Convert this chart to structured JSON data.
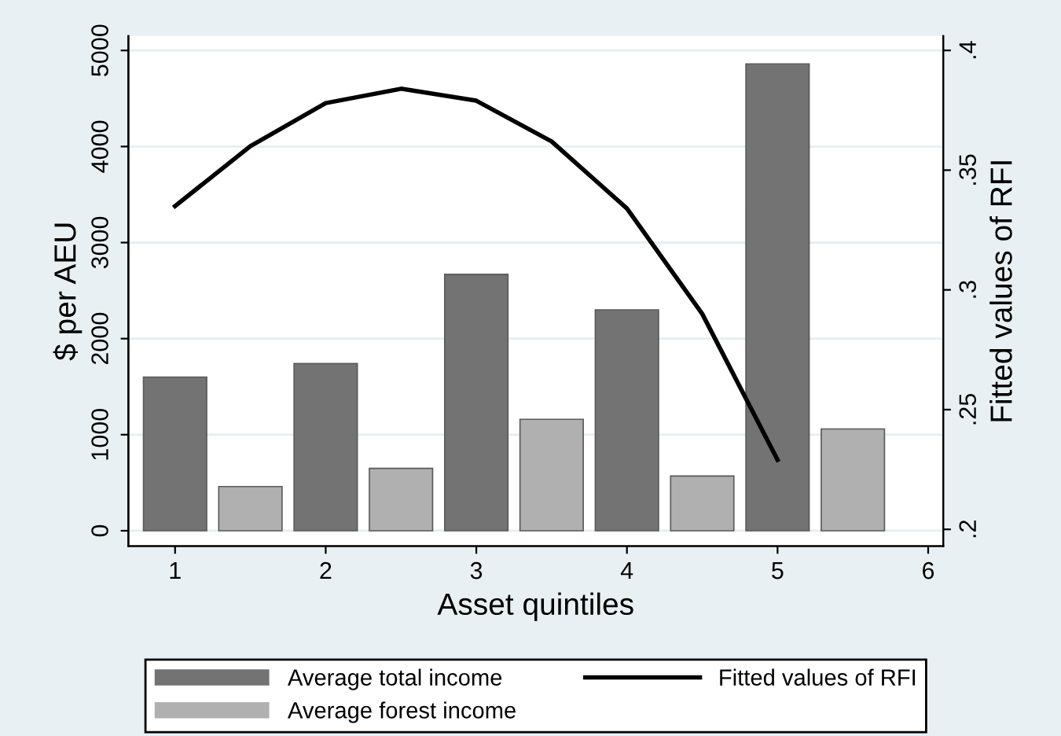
{
  "chart_data": {
    "type": "bar",
    "xlabel": "Asset quintiles",
    "ylabel": "$ per AEU",
    "y2label": "Fitted values of RFI",
    "series": [
      {
        "name": "Average total income",
        "color": "#737373",
        "x": [
          1,
          2,
          3,
          4,
          5
        ],
        "values": [
          1600,
          1740,
          2670,
          2300,
          4860
        ]
      },
      {
        "name": "Average forest income",
        "color": "#b0b0b0",
        "x": [
          1.5,
          2.5,
          3.5,
          4.5,
          5.5
        ],
        "values": [
          460,
          650,
          1160,
          570,
          1060
        ]
      },
      {
        "name": "Fitted values of RFI",
        "type": "line",
        "axis": "y2",
        "color": "#000000",
        "x": [
          1,
          1.5,
          2,
          2.5,
          3,
          3.5,
          4,
          4.5,
          5
        ],
        "values": [
          0.335,
          0.36,
          0.378,
          0.384,
          0.379,
          0.362,
          0.334,
          0.29,
          0.229
        ]
      }
    ],
    "xlim": [
      0.69,
      6.1
    ],
    "xticks": [
      1,
      2,
      3,
      4,
      5,
      6
    ],
    "ylim": [
      -160,
      5150
    ],
    "yticks": [
      0,
      1000,
      2000,
      3000,
      4000,
      5000
    ],
    "y2lim": [
      0.193,
      0.406
    ],
    "y2ticks": [
      {
        "value": 0.2,
        "label": ".2"
      },
      {
        "value": 0.25,
        "label": ".25"
      },
      {
        "value": 0.3,
        "label": ".3"
      },
      {
        "value": 0.35,
        "label": ".35"
      },
      {
        "value": 0.4,
        "label": ".4"
      }
    ],
    "grid": "y",
    "legend": "bottom"
  }
}
